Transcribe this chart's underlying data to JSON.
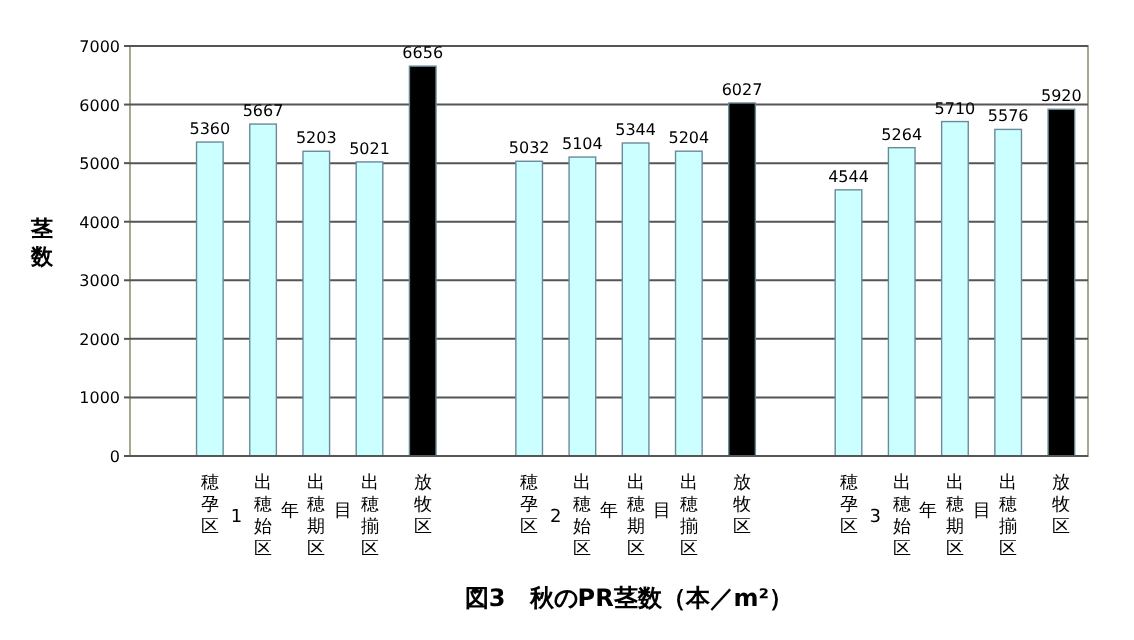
{
  "chart_data": {
    "type": "bar",
    "title": "図3　秋のPR茎数（本／m²）",
    "ylabel": "茎数",
    "categories": [
      null,
      "穂孕区",
      "出穂始区",
      "出穂期区",
      "出穂揃区",
      "放牧区",
      null,
      "穂孕区",
      "出穂始区",
      "出穂期区",
      "出穂揃区",
      "放牧区",
      null,
      "穂孕区",
      "出穂始区",
      "出穂期区",
      "出穂揃区",
      "放牧区"
    ],
    "values": [
      null,
      5360,
      5667,
      5203,
      5021,
      6656,
      null,
      5032,
      5104,
      5344,
      5204,
      6027,
      null,
      4544,
      5264,
      5710,
      5576,
      5920
    ],
    "colors": [
      null,
      "#ccffff",
      "#ccffff",
      "#ccffff",
      "#ccffff",
      "#000000",
      null,
      "#ccffff",
      "#ccffff",
      "#ccffff",
      "#ccffff",
      "#000000",
      null,
      "#ccffff",
      "#ccffff",
      "#ccffff",
      "#ccffff",
      "#000000"
    ],
    "annotations": [
      "1年目",
      "2年目",
      "3年目"
    ],
    "ylim": [
      0,
      7000
    ],
    "yticks": [
      0,
      1000,
      2000,
      3000,
      4000,
      5000,
      6000,
      7000
    ],
    "grid": "y",
    "data_labels": true
  }
}
